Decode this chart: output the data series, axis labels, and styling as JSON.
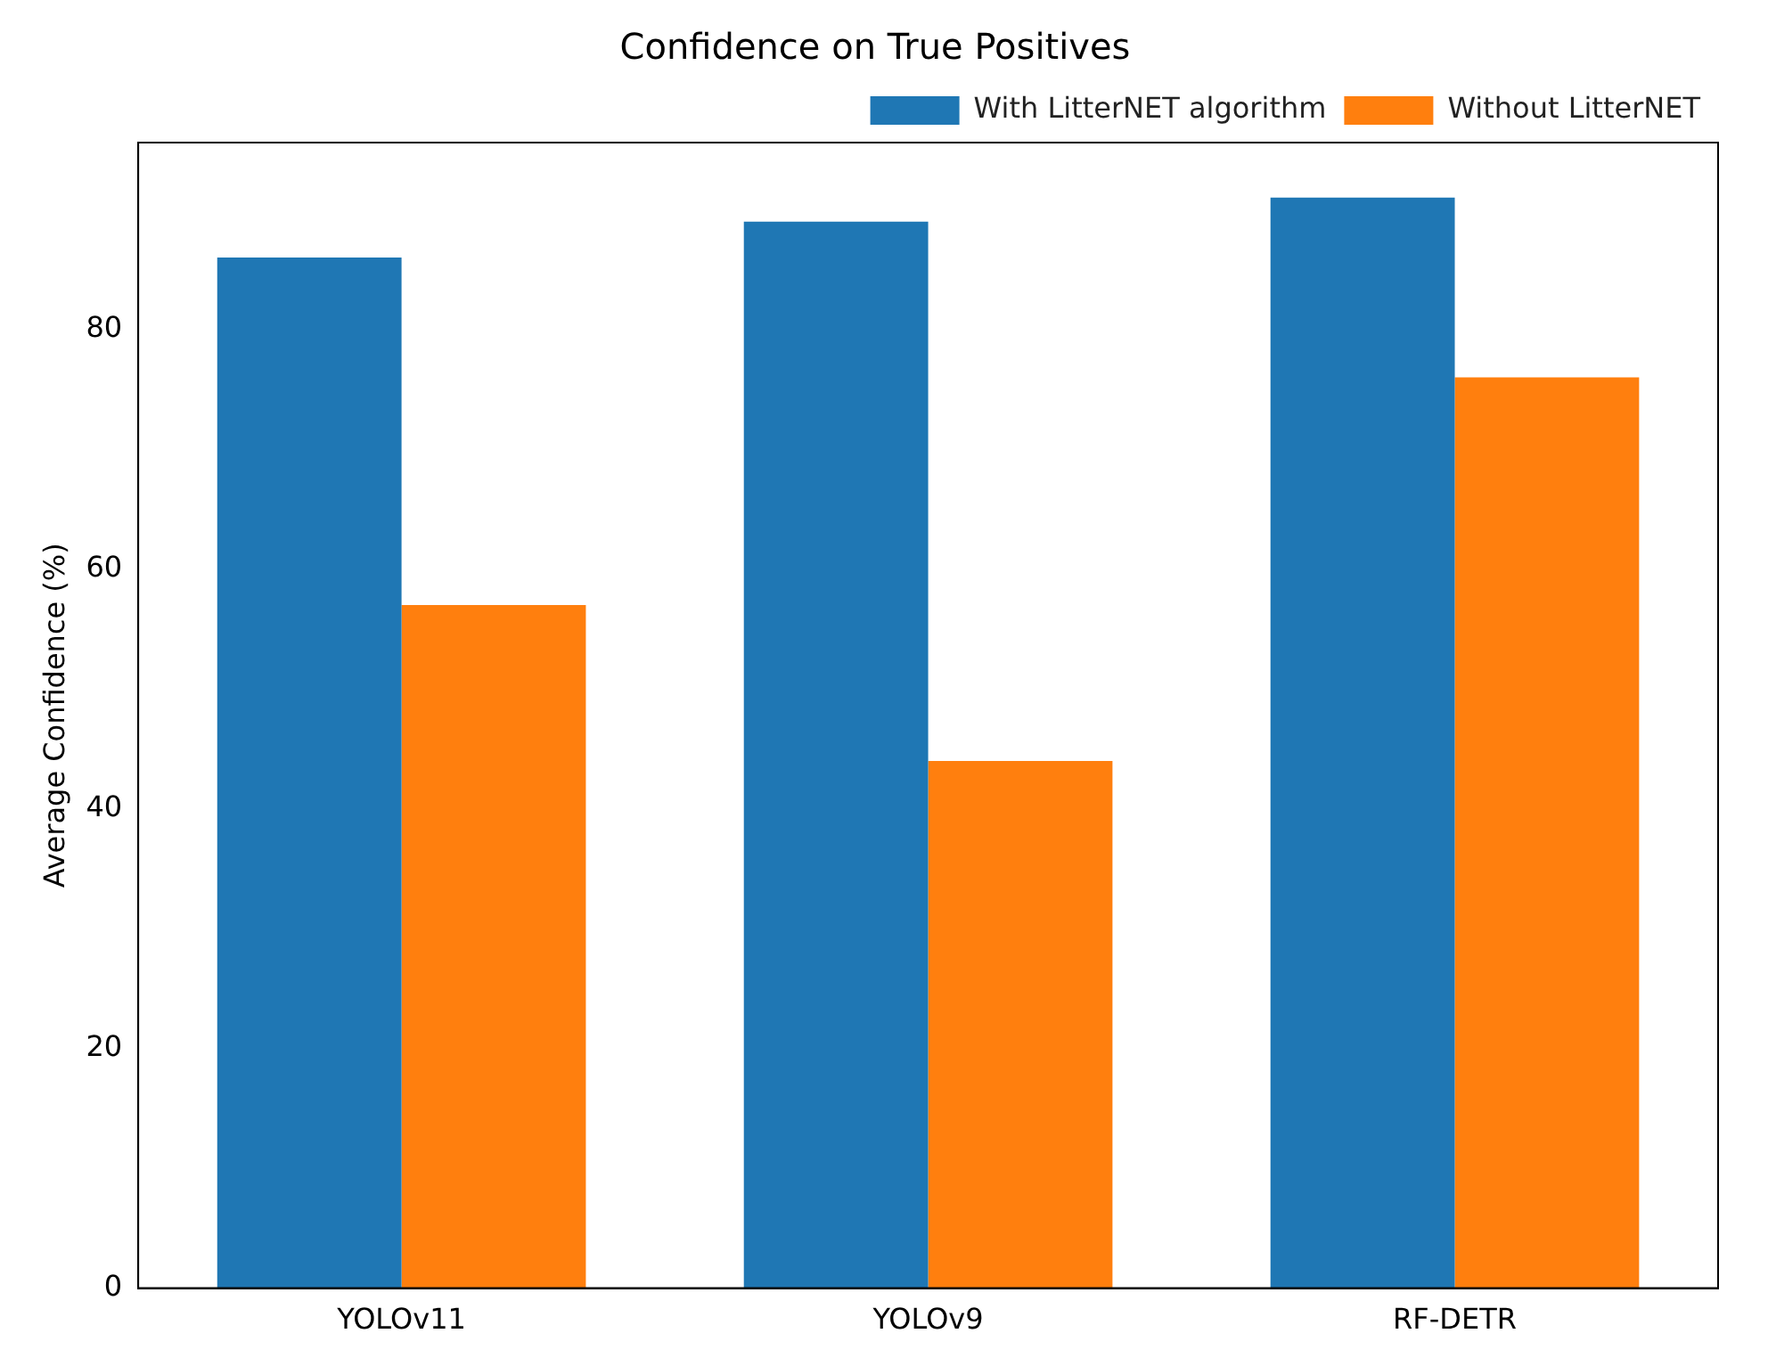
{
  "chart_data": {
    "type": "bar",
    "title": "Confidence on True Positives",
    "ylabel": "Average Confidence (%)",
    "categories": [
      "YOLOv11",
      "YOLOv9",
      "RF-DETR"
    ],
    "series": [
      {
        "name": "With LitterNET algorithm",
        "color": "#1f77b4",
        "values": [
          86,
          89,
          91
        ]
      },
      {
        "name": "Without LitterNET",
        "color": "#ff7f0e",
        "values": [
          57,
          44,
          76
        ]
      }
    ],
    "ylim": [
      0,
      95.6
    ],
    "yticks": [
      0,
      20,
      40,
      60,
      80
    ],
    "grid": false,
    "legend": "top right"
  }
}
